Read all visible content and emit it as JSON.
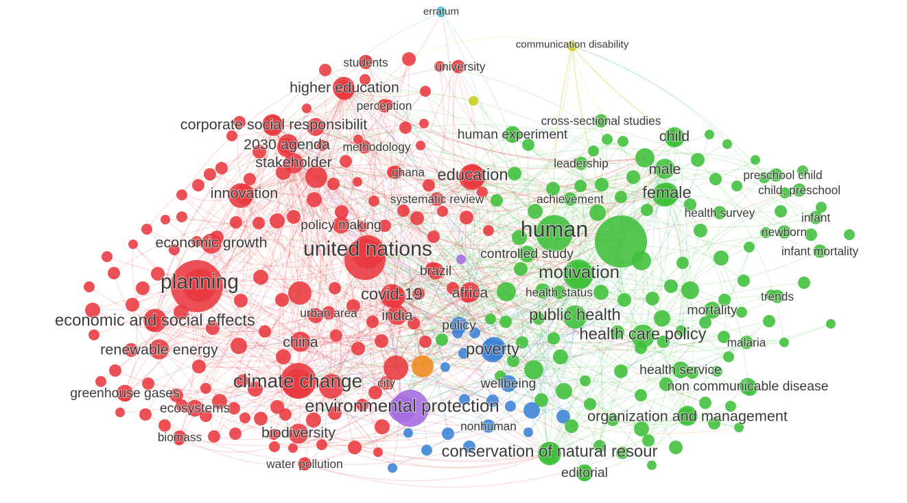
{
  "chart_data": {
    "type": "network",
    "clusters": [
      {
        "id": "red",
        "color": "#e8393f"
      },
      {
        "id": "green",
        "color": "#3fbf3a"
      },
      {
        "id": "blue",
        "color": "#3b82d6"
      },
      {
        "id": "yellow",
        "color": "#c9cc1a"
      },
      {
        "id": "purple",
        "color": "#a56be0"
      },
      {
        "id": "orange",
        "color": "#f08a1c"
      },
      {
        "id": "cyan",
        "color": "#38b8d8"
      }
    ],
    "labels": [
      {
        "text": "erratum",
        "cluster": "cyan",
        "weight": 1
      },
      {
        "text": "communication disability",
        "cluster": "yellow",
        "weight": 1
      },
      {
        "text": "students",
        "cluster": "red",
        "weight": 2
      },
      {
        "text": "university",
        "cluster": "red",
        "weight": 2
      },
      {
        "text": "higher education",
        "cluster": "red",
        "weight": 4
      },
      {
        "text": "perception",
        "cluster": "red",
        "weight": 2
      },
      {
        "text": "corporate social responsibilit",
        "cluster": "red",
        "weight": 4
      },
      {
        "text": "2030 agenda",
        "cluster": "red",
        "weight": 4
      },
      {
        "text": "methodology",
        "cluster": "red",
        "weight": 2
      },
      {
        "text": "stakeholder",
        "cluster": "red",
        "weight": 4
      },
      {
        "text": "ghana",
        "cluster": "red",
        "weight": 2
      },
      {
        "text": "education",
        "cluster": "red",
        "weight": 5
      },
      {
        "text": "innovation",
        "cluster": "red",
        "weight": 4
      },
      {
        "text": "systematic review",
        "cluster": "red",
        "weight": 2
      },
      {
        "text": "policy making",
        "cluster": "red",
        "weight": 3
      },
      {
        "text": "economic growth",
        "cluster": "red",
        "weight": 4
      },
      {
        "text": "united nations",
        "cluster": "red",
        "weight": 8
      },
      {
        "text": "planning",
        "cluster": "red",
        "weight": 8
      },
      {
        "text": "brazil",
        "cluster": "red",
        "weight": 3
      },
      {
        "text": "covid-19",
        "cluster": "red",
        "weight": 5
      },
      {
        "text": "africa",
        "cluster": "red",
        "weight": 4
      },
      {
        "text": "urban area",
        "cluster": "red",
        "weight": 2
      },
      {
        "text": "india",
        "cluster": "red",
        "weight": 4
      },
      {
        "text": "economic and social effects",
        "cluster": "red",
        "weight": 5
      },
      {
        "text": "china",
        "cluster": "red",
        "weight": 4
      },
      {
        "text": "renewable energy",
        "cluster": "red",
        "weight": 4
      },
      {
        "text": "climate change",
        "cluster": "red",
        "weight": 7
      },
      {
        "text": "city",
        "cluster": "red",
        "weight": 2
      },
      {
        "text": "greenhouse gases",
        "cluster": "red",
        "weight": 3
      },
      {
        "text": "ecosystems",
        "cluster": "red",
        "weight": 3
      },
      {
        "text": "biomass",
        "cluster": "red",
        "weight": 2
      },
      {
        "text": "biodiversity",
        "cluster": "red",
        "weight": 4
      },
      {
        "text": "water pollution",
        "cluster": "red",
        "weight": 2
      },
      {
        "text": "environmental protection",
        "cluster": "purple",
        "weight": 6
      },
      {
        "text": "nonhuman",
        "cluster": "blue",
        "weight": 2
      },
      {
        "text": "policy",
        "cluster": "blue",
        "weight": 3
      },
      {
        "text": "poverty",
        "cluster": "blue",
        "weight": 5
      },
      {
        "text": "wellbeing",
        "cluster": "blue",
        "weight": 3
      },
      {
        "text": "cross-sectional studies",
        "cluster": "green",
        "weight": 2
      },
      {
        "text": "human experiment",
        "cluster": "green",
        "weight": 3
      },
      {
        "text": "child",
        "cluster": "green",
        "weight": 4
      },
      {
        "text": "leadership",
        "cluster": "green",
        "weight": 2
      },
      {
        "text": "male",
        "cluster": "green",
        "weight": 4
      },
      {
        "text": "preschool child",
        "cluster": "green",
        "weight": 2
      },
      {
        "text": "child, preschool",
        "cluster": "green",
        "weight": 2
      },
      {
        "text": "female",
        "cluster": "green",
        "weight": 5
      },
      {
        "text": "achievement",
        "cluster": "green",
        "weight": 2
      },
      {
        "text": "health survey",
        "cluster": "green",
        "weight": 2
      },
      {
        "text": "infant",
        "cluster": "green",
        "weight": 2
      },
      {
        "text": "newborn",
        "cluster": "green",
        "weight": 2
      },
      {
        "text": "human",
        "cluster": "green",
        "weight": 9
      },
      {
        "text": "infant mortality",
        "cluster": "green",
        "weight": 2
      },
      {
        "text": "controlled study",
        "cluster": "green",
        "weight": 3
      },
      {
        "text": "motivation",
        "cluster": "green",
        "weight": 6
      },
      {
        "text": "health status",
        "cluster": "green",
        "weight": 2
      },
      {
        "text": "trends",
        "cluster": "green",
        "weight": 2
      },
      {
        "text": "mortality",
        "cluster": "green",
        "weight": 3
      },
      {
        "text": "public health",
        "cluster": "green",
        "weight": 5
      },
      {
        "text": "health care policy",
        "cluster": "green",
        "weight": 5
      },
      {
        "text": "malaria",
        "cluster": "green",
        "weight": 2
      },
      {
        "text": "health service",
        "cluster": "green",
        "weight": 3
      },
      {
        "text": "non communicable disease",
        "cluster": "green",
        "weight": 3
      },
      {
        "text": "organization and management",
        "cluster": "green",
        "weight": 4
      },
      {
        "text": "conservation of natural resour",
        "cluster": "green",
        "weight": 5
      },
      {
        "text": "editorial",
        "cluster": "green",
        "weight": 3
      }
    ]
  }
}
